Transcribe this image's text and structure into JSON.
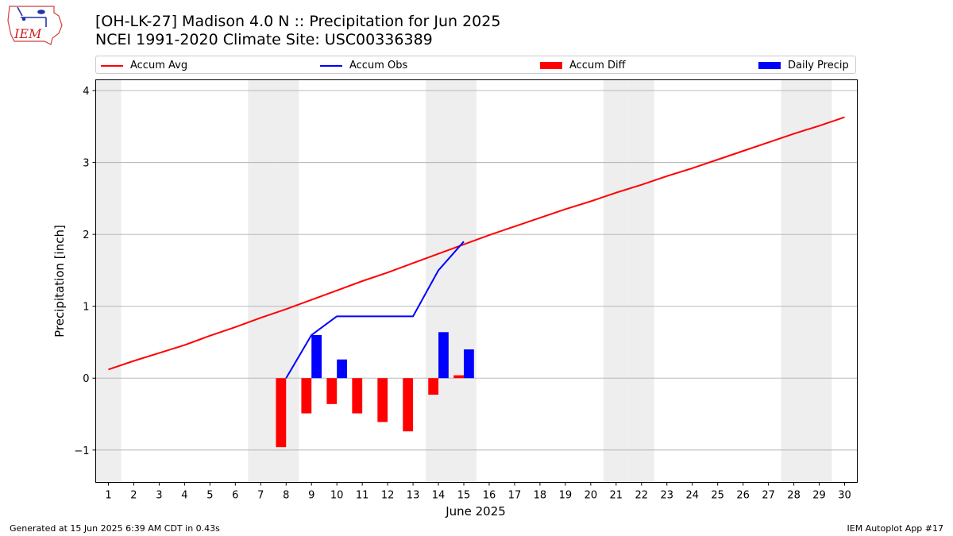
{
  "title_line1": "[OH-LK-27] Madison 4.0 N :: Precipitation for Jun 2025",
  "title_line2": "NCEI 1991-2020 Climate Site: USC00336389",
  "logo_text": "IEM",
  "footer_left": "Generated at 15 Jun 2025 6:39 AM CDT in 0.43s",
  "footer_right": "IEM Autoplot App #17",
  "colors": {
    "accum_avg": "#ff0000",
    "accum_obs": "#0000ff",
    "accum_diff": "#ff0000",
    "daily_precip": "#0000ff",
    "weekend_band": "#eeeeee",
    "grid": "#b0b0b0"
  },
  "chart_data": {
    "type": "bar",
    "xlabel": "June 2025",
    "ylabel": "Precipitation [inch]",
    "xlim": [
      0.5,
      30.5
    ],
    "ylim": [
      -1.45,
      4.15
    ],
    "x_ticks": [
      1,
      2,
      3,
      4,
      5,
      6,
      7,
      8,
      9,
      10,
      11,
      12,
      13,
      14,
      15,
      16,
      17,
      18,
      19,
      20,
      21,
      22,
      23,
      24,
      25,
      26,
      27,
      28,
      29,
      30
    ],
    "y_ticks": [
      -1,
      0,
      1,
      2,
      3,
      4
    ],
    "y_tick_labels": [
      "−1",
      "0",
      "1",
      "2",
      "3",
      "4"
    ],
    "grid": "horizontal",
    "legend_position": "top",
    "weekend_days": [
      1,
      7,
      8,
      14,
      15,
      21,
      22,
      28,
      29
    ],
    "series": [
      {
        "name": "Accum Avg",
        "kind": "line",
        "x": [
          1,
          2,
          3,
          4,
          5,
          6,
          7,
          8,
          9,
          10,
          11,
          12,
          13,
          14,
          15,
          16,
          17,
          18,
          19,
          20,
          21,
          22,
          23,
          24,
          25,
          26,
          27,
          28,
          29,
          30
        ],
        "values": [
          0.12,
          0.24,
          0.35,
          0.46,
          0.59,
          0.71,
          0.84,
          0.96,
          1.09,
          1.22,
          1.35,
          1.47,
          1.6,
          1.73,
          1.86,
          1.99,
          2.11,
          2.23,
          2.35,
          2.46,
          2.58,
          2.69,
          2.81,
          2.92,
          3.04,
          3.16,
          3.28,
          3.4,
          3.51,
          3.63
        ]
      },
      {
        "name": "Accum Obs",
        "kind": "line",
        "x": [
          8,
          9,
          10,
          11,
          12,
          13,
          14,
          15
        ],
        "values": [
          0.0,
          0.6,
          0.86,
          0.86,
          0.86,
          0.86,
          1.5,
          1.9
        ]
      },
      {
        "name": "Accum Diff",
        "kind": "bar",
        "x": [
          8,
          9,
          10,
          11,
          12,
          13,
          14,
          15
        ],
        "values": [
          -0.96,
          -0.49,
          -0.36,
          -0.49,
          -0.61,
          -0.74,
          -0.23,
          0.04
        ]
      },
      {
        "name": "Daily Precip",
        "kind": "bar",
        "x": [
          9,
          10,
          14,
          15
        ],
        "values": [
          0.6,
          0.26,
          0.64,
          0.4
        ]
      }
    ]
  }
}
